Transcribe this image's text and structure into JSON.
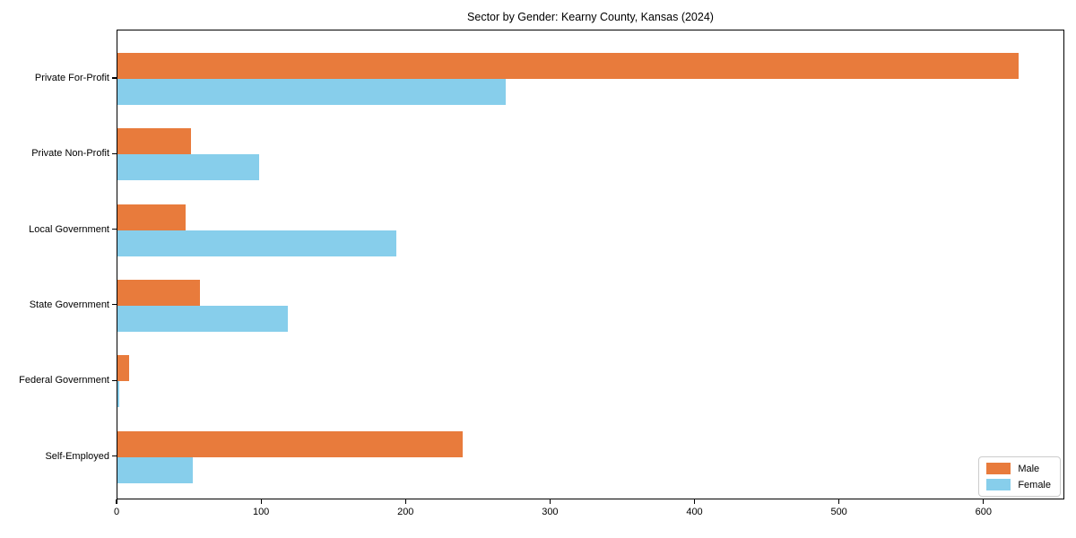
{
  "title": "Sector by Gender: Kearny County, Kansas (2024)",
  "colors": {
    "male": "#E87B3C",
    "female": "#87CEEB",
    "axis": "#000000",
    "background": "#FFFFFF",
    "legend_border": "#CCCCCC"
  },
  "legend": {
    "position": "lower right",
    "items": [
      {
        "label": "Male",
        "color_key": "male"
      },
      {
        "label": "Female",
        "color_key": "female"
      }
    ]
  },
  "chart_data": {
    "type": "bar",
    "orientation": "horizontal",
    "title": "Sector by Gender: Kearny County, Kansas (2024)",
    "categories": [
      "Private For-Profit",
      "Private Non-Profit",
      "Local Government",
      "State Government",
      "Federal Government",
      "Self-Employed"
    ],
    "series": [
      {
        "name": "Male",
        "color": "#E87B3C",
        "values": [
          624,
          51,
          47,
          57,
          8,
          239
        ]
      },
      {
        "name": "Female",
        "color": "#87CEEB",
        "values": [
          269,
          98,
          193,
          118,
          1,
          52
        ]
      }
    ],
    "xlabel": "",
    "ylabel": "",
    "xlim": [
      0,
      656
    ],
    "x_ticks": [
      0,
      100,
      200,
      300,
      400,
      500,
      600
    ],
    "grid": false,
    "legend_position": "lower right"
  }
}
